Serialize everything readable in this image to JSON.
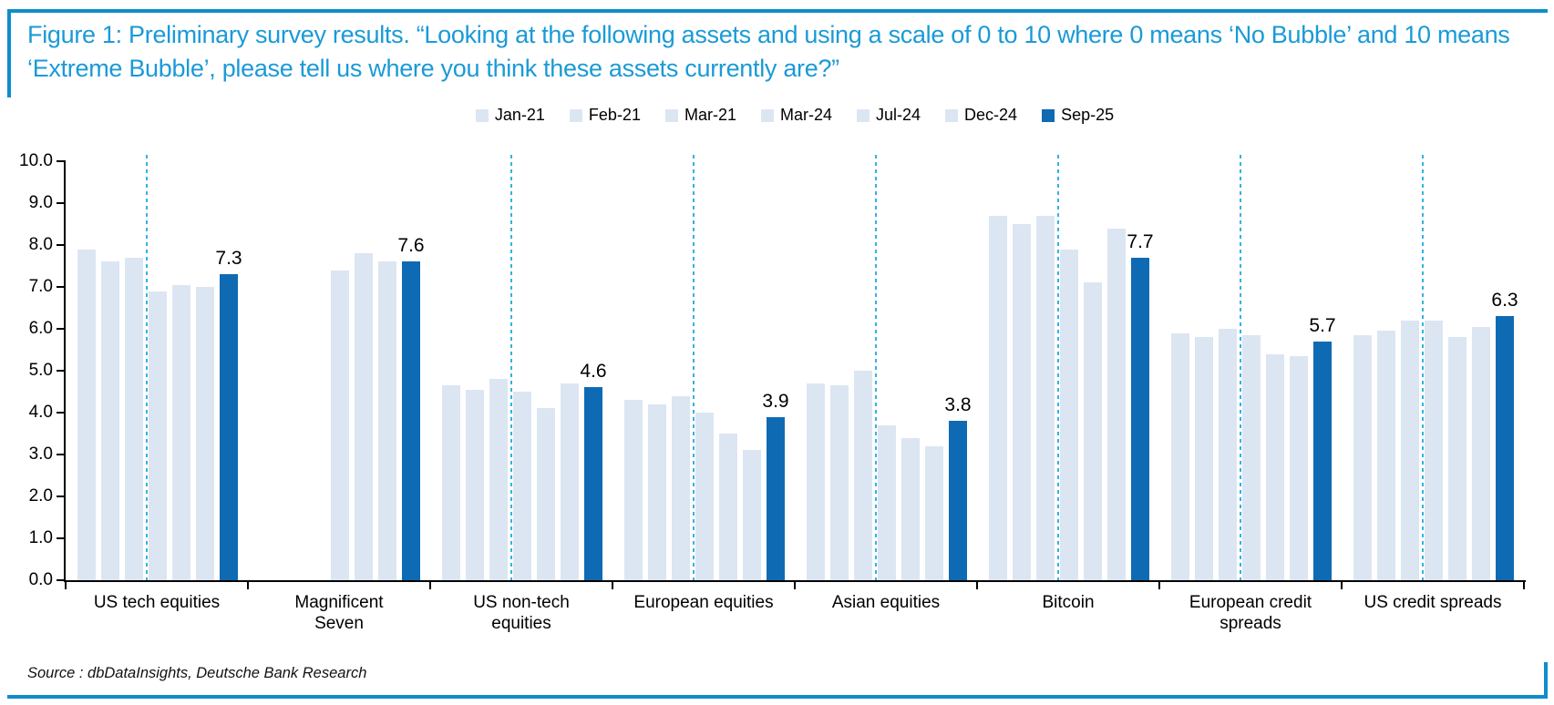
{
  "title": "Figure 1: Preliminary survey results. “Looking at the following assets and using a scale of 0 to 10 where 0 means ‘No Bubble’ and 10 means ‘Extreme Bubble’, please tell us where you think these assets currently are?”",
  "source": "Source : dbDataInsights, Deutsche Bank Research",
  "colors": {
    "title_blue": "#1A9AD7",
    "frame_blue": "#0F8DCB",
    "light_bar": "#DCE6F2",
    "dark_bar": "#0F6AB4",
    "divider_cyan": "#35B1E4",
    "axis_black": "#000000"
  },
  "legend": [
    {
      "label": "Jan-21",
      "swatch": "light"
    },
    {
      "label": "Feb-21",
      "swatch": "light"
    },
    {
      "label": "Mar-21",
      "swatch": "light"
    },
    {
      "label": "Mar-24",
      "swatch": "light"
    },
    {
      "label": "Jul-24",
      "swatch": "light"
    },
    {
      "label": "Dec-24",
      "swatch": "light"
    },
    {
      "label": "Sep-25",
      "swatch": "dark"
    }
  ],
  "chart_data": {
    "type": "bar",
    "title": "Figure 1: Preliminary survey results. “Looking at the following assets and using a scale of 0 to 10 where 0 means ‘No Bubble’ and 10 means ‘Extreme Bubble’, please tell us where you think these assets currently are?”",
    "xlabel": "",
    "ylabel": "",
    "ylim": [
      0,
      10
    ],
    "ytick_labels": [
      "0.0",
      "1.0",
      "2.0",
      "3.0",
      "4.0",
      "5.0",
      "6.0",
      "7.0",
      "8.0",
      "9.0",
      "10.0"
    ],
    "grid": false,
    "legend_position": "top-center",
    "categories": [
      "US tech equities",
      "Magnificent Seven",
      "US non-tech equities",
      "European equities",
      "Asian equities",
      "Bitcoin",
      "European credit spreads",
      "US credit spreads"
    ],
    "series": [
      {
        "name": "Jan-21",
        "values": [
          7.9,
          null,
          4.65,
          4.3,
          4.7,
          8.7,
          5.9,
          5.85
        ]
      },
      {
        "name": "Feb-21",
        "values": [
          7.6,
          null,
          4.55,
          4.2,
          4.65,
          8.5,
          5.8,
          5.95
        ]
      },
      {
        "name": "Mar-21",
        "values": [
          7.7,
          null,
          4.8,
          4.4,
          5.0,
          8.7,
          6.0,
          6.2
        ]
      },
      {
        "name": "Mar-24",
        "values": [
          6.9,
          7.4,
          4.5,
          4.0,
          3.7,
          7.9,
          5.85,
          6.2
        ]
      },
      {
        "name": "Jul-24",
        "values": [
          7.05,
          7.8,
          4.1,
          3.5,
          3.4,
          7.1,
          5.4,
          5.8
        ]
      },
      {
        "name": "Dec-24",
        "values": [
          7.0,
          7.6,
          4.7,
          3.1,
          3.2,
          8.4,
          5.35,
          6.05
        ]
      },
      {
        "name": "Sep-25",
        "values": [
          7.3,
          7.6,
          4.6,
          3.9,
          3.8,
          7.7,
          5.7,
          6.3
        ]
      }
    ],
    "labeled_series": "Sep-25",
    "value_labels": [
      "7.3",
      "7.6",
      "4.6",
      "3.9",
      "3.8",
      "7.7",
      "5.7",
      "6.3"
    ],
    "divider_between_series": [
      "Mar-21",
      "Mar-24"
    ],
    "divider_omitted_categories": [
      "Magnificent Seven"
    ]
  }
}
